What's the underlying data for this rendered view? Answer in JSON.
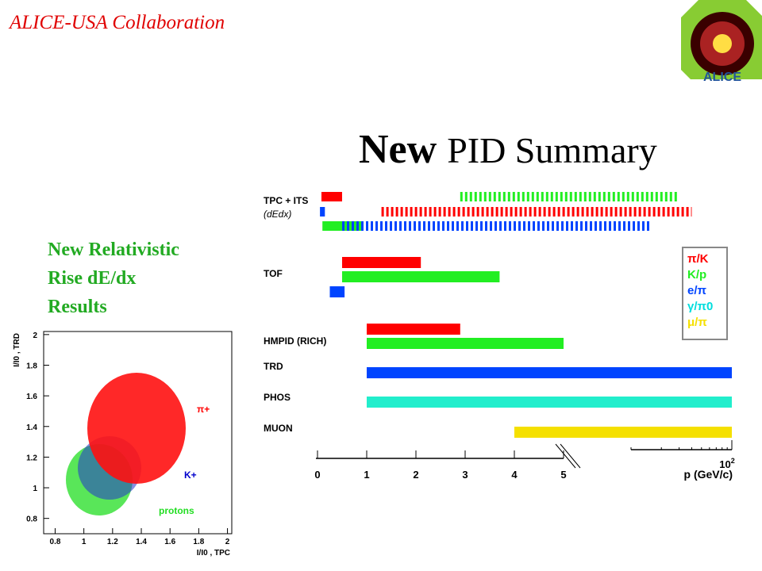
{
  "header": {
    "org": "ALICE-USA Collaboration",
    "logo_text": "ALICE"
  },
  "title": {
    "bold": "New",
    "rest": "PID Summary"
  },
  "subtitle_lines": [
    "New Relativistic",
    "Rise dE/dx",
    "Results"
  ],
  "pid_chart": {
    "x_label": "p (GeV/c)",
    "xticks": [
      0,
      1,
      2,
      3,
      4,
      5
    ],
    "far_tick": {
      "value": 100,
      "base": "10",
      "exp": "2"
    },
    "detectors": [
      {
        "label": "TPC + ITS",
        "sublabel": "(dEdx)",
        "bars": [
          {
            "color": "#ff0000",
            "start": 0.08,
            "end": 0.5,
            "style": "solid"
          },
          {
            "color": "#ff0000",
            "start": 1.3,
            "end": 40,
            "style": "dashed"
          },
          {
            "color": "#22ee22",
            "start": 0.1,
            "end": 0.9,
            "style": "solid"
          },
          {
            "color": "#22ee22",
            "start": 2.9,
            "end": 30,
            "style": "dashed"
          },
          {
            "color": "#0044ff",
            "start": 0.05,
            "end": 0.15,
            "style": "solid"
          },
          {
            "color": "#0044ff",
            "start": 0.5,
            "end": 16,
            "style": "dashed"
          }
        ]
      },
      {
        "label": "TOF",
        "bars": [
          {
            "color": "#ff0000",
            "start": 0.5,
            "end": 2.1,
            "style": "solid"
          },
          {
            "color": "#22ee22",
            "start": 0.5,
            "end": 3.7,
            "style": "solid"
          },
          {
            "color": "#0044ff",
            "start": 0.25,
            "end": 0.55,
            "style": "solid"
          }
        ]
      },
      {
        "label": "HMPID (RICH)",
        "bars": [
          {
            "color": "#ff0000",
            "start": 1,
            "end": 2.9,
            "style": "solid"
          },
          {
            "color": "#22ee22",
            "start": 1,
            "end": 5,
            "style": "solid"
          }
        ]
      },
      {
        "label": "TRD",
        "bars": [
          {
            "color": "#0044ff",
            "start": 1,
            "end": 100,
            "style": "solid"
          }
        ]
      },
      {
        "label": "PHOS",
        "bars": [
          {
            "color": "#22eecc",
            "start": 1,
            "end": 100,
            "style": "solid"
          }
        ]
      },
      {
        "label": "MUON",
        "bars": [
          {
            "color": "#f5e000",
            "start": 4,
            "end": 100,
            "style": "solid"
          }
        ]
      }
    ],
    "legend": [
      {
        "label": "π/K",
        "color": "#ff0000"
      },
      {
        "label": "K/p",
        "color": "#22ee22"
      },
      {
        "label": "e/π",
        "color": "#0044ff"
      },
      {
        "label": "γ/π0",
        "color": "#00dddd"
      },
      {
        "label": "μ/π",
        "color": "#f5e000"
      }
    ]
  },
  "scatter": {
    "x_label": "I/I0 , TPC",
    "y_label": "I/I0 , TRD",
    "xlim": [
      0.72,
      2.03
    ],
    "ylim": [
      0.7,
      2.02
    ],
    "xticks": [
      0.8,
      1,
      1.2,
      1.4,
      1.6,
      1.8,
      2
    ],
    "yticks": [
      0.8,
      1,
      1.2,
      1.4,
      1.6,
      1.8,
      2
    ],
    "annotations": [
      {
        "text": "π+",
        "color": "#ff0000"
      },
      {
        "text": "K+",
        "color": "#0000cc"
      },
      {
        "text": "protons",
        "color": "#22dd22"
      }
    ]
  }
}
